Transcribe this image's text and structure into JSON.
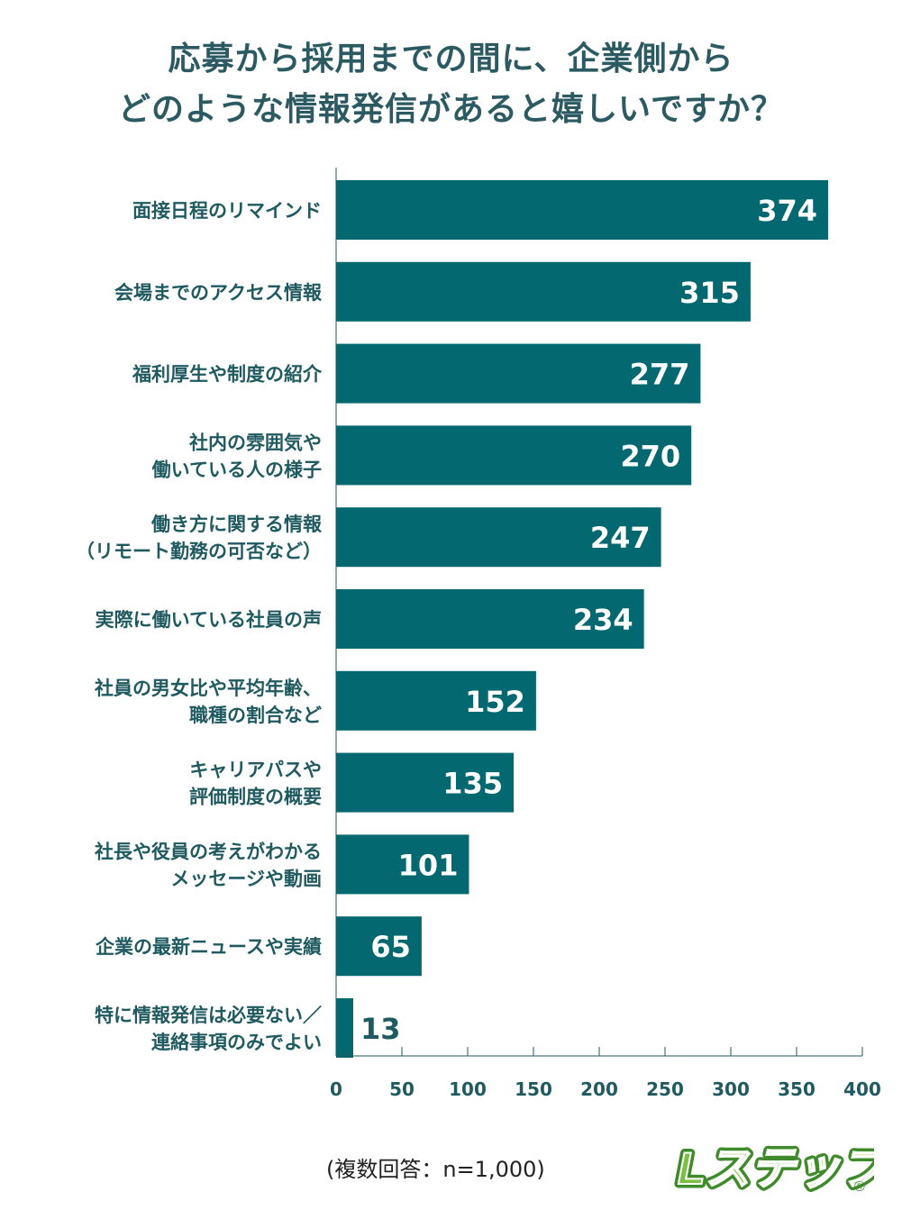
{
  "chart_data": {
    "type": "bar",
    "orientation": "horizontal",
    "title_lines": [
      "応募から採用までの間に、企業側から",
      "どのような情報発信があると嬉しいですか？"
    ],
    "categories": [
      [
        "面接日程のリマインド"
      ],
      [
        "会場までのアクセス情報"
      ],
      [
        "福利厚生や制度の紹介"
      ],
      [
        "社内の雰囲気や",
        "働いている人の様子"
      ],
      [
        "働き方に関する情報",
        "（リモート勤務の可否など）"
      ],
      [
        "実際に働いている社員の声"
      ],
      [
        "社員の男女比や平均年齢、",
        "職種の割合など"
      ],
      [
        "キャリアパスや",
        "評価制度の概要"
      ],
      [
        "社長や役員の考えがわかる",
        "メッセージや動画"
      ],
      [
        "企業の最新ニュースや実績"
      ],
      [
        "特に情報発信は必要ない／",
        "連絡事項のみでよい"
      ]
    ],
    "values": [
      374,
      315,
      277,
      270,
      247,
      234,
      152,
      135,
      101,
      65,
      13
    ],
    "xlim": [
      0,
      400
    ],
    "xticks": [
      "0",
      "50",
      "100",
      "150",
      "200",
      "250",
      "300",
      "350",
      "400"
    ],
    "grid": false,
    "bar_color": "#03686f",
    "value_label_color_inside": "#ffffff",
    "value_label_color_outside": "#1f5a60"
  },
  "note": "(複数回答：n=1,000)",
  "logo": {
    "text": "Lステップ",
    "mark": "®",
    "color": "#7bc043"
  }
}
